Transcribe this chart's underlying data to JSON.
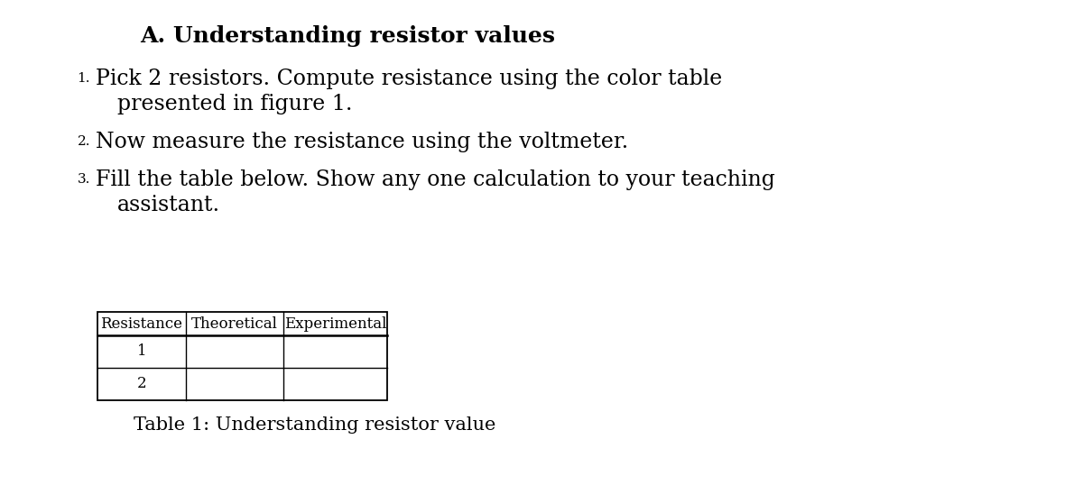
{
  "title": "A. Understanding resistor values",
  "instructions": [
    {
      "number": "1",
      "lines": [
        "Pick 2 resistors. Compute resistance using the color table",
        "presented in figure 1."
      ]
    },
    {
      "number": "2",
      "lines": [
        "Now measure the resistance using the voltmeter."
      ]
    },
    {
      "number": "3",
      "lines": [
        "Fill the table below. Show any one calculation to your teaching",
        "assistant."
      ]
    }
  ],
  "table_headers": [
    "Resistance",
    "Theoretical",
    "Experimental"
  ],
  "table_rows": [
    [
      "1",
      "",
      ""
    ],
    [
      "2",
      "",
      ""
    ]
  ],
  "table_caption": "Table 1: Understanding resistor value",
  "bg_color": "#ffffff",
  "text_color": "#000000",
  "title_fontsize": 18,
  "body_fontsize": 17,
  "number_fontsize": 11,
  "table_fontsize": 12,
  "caption_fontsize": 15
}
